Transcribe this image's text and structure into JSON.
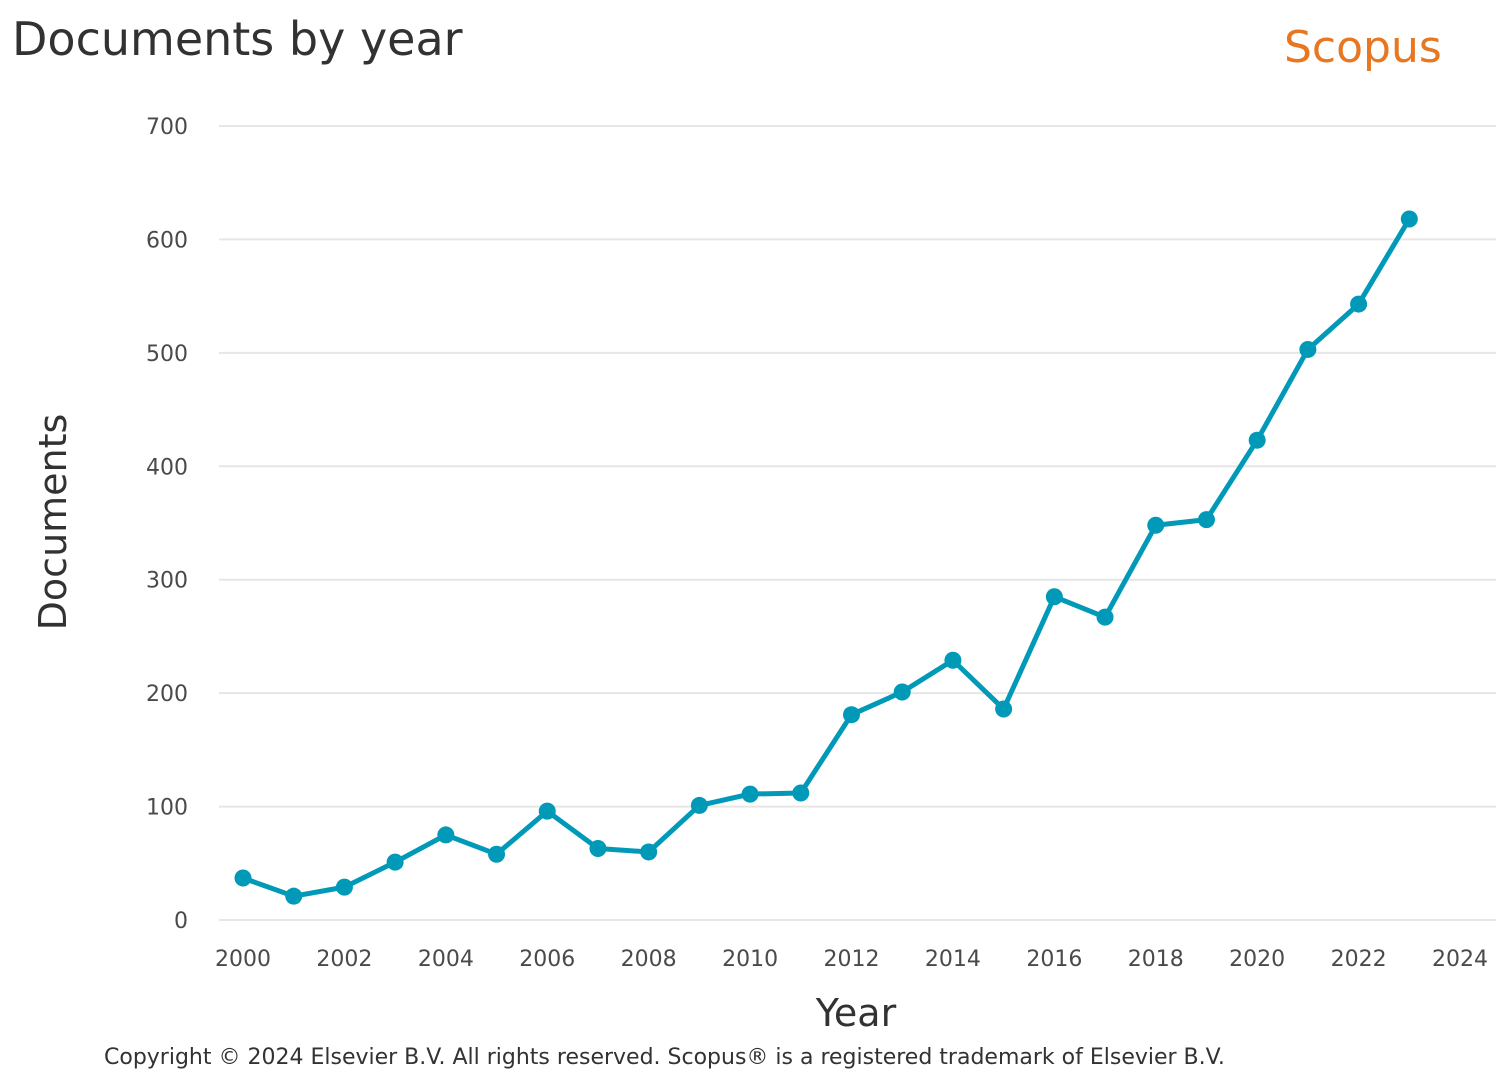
{
  "header": {
    "title": "Documents by year",
    "brand": "Scopus"
  },
  "footer": {
    "copyright": "Copyright © 2024 Elsevier B.V. All rights reserved. Scopus® is a registered trademark of Elsevier B.V."
  },
  "colors": {
    "line": "#0099b8",
    "brand": "#e87722",
    "grid": "#e6e6e6",
    "text": "#323232",
    "tick_text": "#4a4a4a"
  },
  "chart_data": {
    "type": "line",
    "title": "Documents by year",
    "xlabel": "Year",
    "ylabel": "Documents",
    "xlim": [
      2000,
      2024
    ],
    "ylim": [
      0,
      700
    ],
    "xticks": [
      2000,
      2002,
      2004,
      2006,
      2008,
      2010,
      2012,
      2014,
      2016,
      2018,
      2020,
      2022,
      2024
    ],
    "yticks": [
      0,
      100,
      200,
      300,
      400,
      500,
      600,
      700
    ],
    "grid": true,
    "legend": "none",
    "x": [
      2000,
      2001,
      2002,
      2003,
      2004,
      2005,
      2006,
      2007,
      2008,
      2009,
      2010,
      2011,
      2012,
      2013,
      2014,
      2015,
      2016,
      2017,
      2018,
      2019,
      2020,
      2021,
      2022,
      2023
    ],
    "y": [
      37,
      21,
      29,
      51,
      75,
      58,
      96,
      63,
      60,
      101,
      111,
      112,
      181,
      201,
      229,
      186,
      285,
      267,
      348,
      353,
      423,
      503,
      543,
      618
    ]
  }
}
